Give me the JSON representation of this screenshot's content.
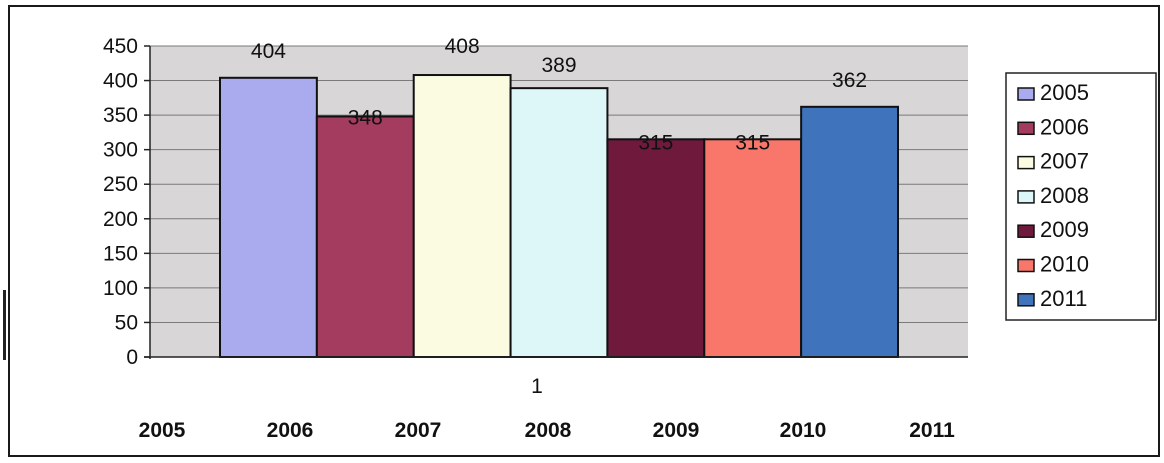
{
  "chart_data": {
    "type": "bar",
    "categories": [
      "1"
    ],
    "series": [
      {
        "name": "2005",
        "values": [
          404
        ],
        "color": "#aaaaee"
      },
      {
        "name": "2006",
        "values": [
          348
        ],
        "color": "#a33c5e"
      },
      {
        "name": "2007",
        "values": [
          408
        ],
        "color": "#fbfbe1"
      },
      {
        "name": "2008",
        "values": [
          389
        ],
        "color": "#ddf6f8"
      },
      {
        "name": "2009",
        "values": [
          315
        ],
        "color": "#6f1a3d"
      },
      {
        "name": "2010",
        "values": [
          315
        ],
        "color": "#f9776a"
      },
      {
        "name": "2011",
        "values": [
          362
        ],
        "color": "#3f74bc"
      }
    ],
    "y_ticks": [
      "0",
      "50",
      "100",
      "150",
      "200",
      "250",
      "300",
      "350",
      "400",
      "450"
    ],
    "ylim": [
      0,
      450
    ],
    "data_labels": [
      "404",
      "348",
      "408",
      "389",
      "315",
      "315",
      "362"
    ],
    "plot_background": "#d8d6d6",
    "grid": true,
    "legend_position": "right",
    "footer_labels": [
      "2005",
      "2006",
      "2007",
      "2008",
      "2009",
      "2010",
      "2011"
    ]
  }
}
